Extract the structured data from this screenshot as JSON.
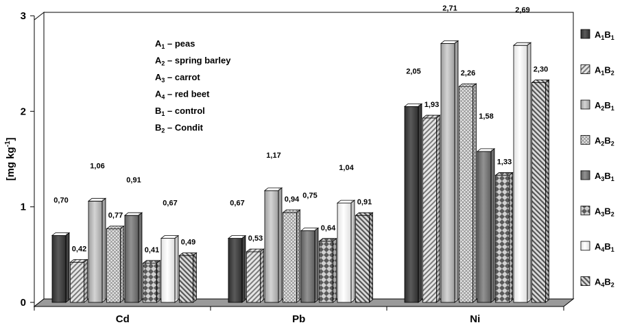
{
  "chart_data": {
    "type": "bar",
    "title": "",
    "xlabel": "",
    "ylabel": "[mg kg",
    "ylabel_sup": "-1",
    "ylabel_end": "]",
    "ylim": [
      0,
      3
    ],
    "yticks": [
      "0",
      "1",
      "2",
      "3"
    ],
    "categories": [
      "Cd",
      "Pb",
      "Ni"
    ],
    "legend_position": "right",
    "grid": false,
    "series": [
      {
        "name": "A1B1",
        "main1": "A",
        "sub1": "1",
        "main2": "B",
        "sub2": "1",
        "color": "#4a4a4a",
        "pattern": "solid-dark",
        "values": [
          0.7,
          0.67,
          2.05
        ],
        "labels": [
          "0,70",
          "0,67",
          "2,05"
        ]
      },
      {
        "name": "A1B2",
        "main1": "A",
        "sub1": "1",
        "main2": "B",
        "sub2": "2",
        "color": "#d0d0d0",
        "pattern": "diagonal",
        "values": [
          0.42,
          0.53,
          1.93
        ],
        "labels": [
          "0,42",
          "0,53",
          "1,93"
        ]
      },
      {
        "name": "A2B1",
        "main1": "A",
        "sub1": "2",
        "main2": "B",
        "sub2": "1",
        "color": "#bdbdbd",
        "pattern": "solid-light",
        "values": [
          1.06,
          1.17,
          2.71
        ],
        "labels": [
          "1,06",
          "1,17",
          "2,71"
        ]
      },
      {
        "name": "A2B2",
        "main1": "A",
        "sub1": "2",
        "main2": "B",
        "sub2": "2",
        "color": "#d8d8d8",
        "pattern": "crosshatch",
        "values": [
          0.77,
          0.94,
          2.26
        ],
        "labels": [
          "0,77",
          "0,94",
          "2,26"
        ]
      },
      {
        "name": "A3B1",
        "main1": "A",
        "sub1": "3",
        "main2": "B",
        "sub2": "1",
        "color": "#7d7d7d",
        "pattern": "solid-mid",
        "values": [
          0.91,
          0.75,
          1.58
        ],
        "labels": [
          "0,91",
          "0,75",
          "1,58"
        ]
      },
      {
        "name": "A3B2",
        "main1": "A",
        "sub1": "3",
        "main2": "B",
        "sub2": "2",
        "color": "#9a9a9a",
        "pattern": "checker",
        "values": [
          0.41,
          0.64,
          1.33
        ],
        "labels": [
          "0,41",
          "0,64",
          "1,33"
        ]
      },
      {
        "name": "A4B1",
        "main1": "A",
        "sub1": "4",
        "main2": "B",
        "sub2": "1",
        "color": "#f4f4f4",
        "pattern": "white",
        "values": [
          0.67,
          1.04,
          2.69
        ],
        "labels": [
          "0,67",
          "1,04",
          "2,69"
        ]
      },
      {
        "name": "A4B2",
        "main1": "A",
        "sub1": "4",
        "main2": "B",
        "sub2": "2",
        "color": "#bdbdbd",
        "pattern": "diagonal2",
        "values": [
          0.49,
          0.91,
          2.3
        ],
        "labels": [
          "0,49",
          "0,91",
          "2,30"
        ]
      }
    ],
    "annotations": [
      {
        "main": "A",
        "sub": "1",
        "text": " – peas"
      },
      {
        "main": "A",
        "sub": "2",
        "text": " – spring barley"
      },
      {
        "main": "A",
        "sub": "3",
        "text": " – carrot"
      },
      {
        "main": "A",
        "sub": "4",
        "text": " – red beet"
      },
      {
        "main": "B",
        "sub": "1",
        "text": " – control"
      },
      {
        "main": "B",
        "sub": "2",
        "text": " – Condit"
      }
    ]
  }
}
